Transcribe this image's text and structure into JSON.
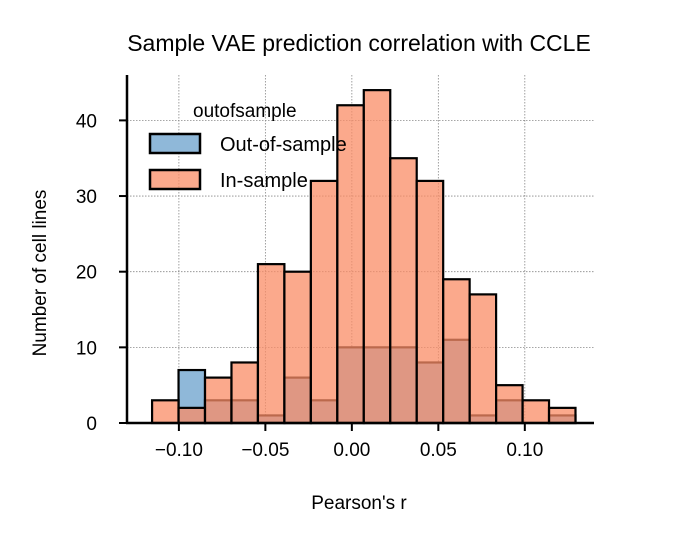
{
  "chart_data": {
    "type": "bar",
    "title": "Sample VAE prediction correlation with CCLE",
    "xlabel": "Pearson's r",
    "ylabel": "Number of cell lines",
    "xlim": [
      -0.13,
      0.14
    ],
    "ylim": [
      0,
      46
    ],
    "xticks": [
      -0.1,
      -0.05,
      0.0,
      0.05,
      0.1
    ],
    "xtick_labels": [
      "−0.10",
      "−0.05",
      "0.00",
      "0.05",
      "0.10"
    ],
    "yticks": [
      0,
      10,
      20,
      30,
      40
    ],
    "ytick_labels": [
      "0",
      "10",
      "20",
      "30",
      "40"
    ],
    "grid": true,
    "legend": {
      "title": "outofsample",
      "placement": "upper-left",
      "entries": [
        "Out-of-sample",
        "In-sample"
      ]
    },
    "bin_edges": [
      -0.1155,
      -0.1002,
      -0.0849,
      -0.0696,
      -0.0543,
      -0.039,
      -0.0237,
      -0.0084,
      0.0069,
      0.0222,
      0.0375,
      0.0528,
      0.0681,
      0.0834,
      0.0987,
      0.114,
      0.1293
    ],
    "series": [
      {
        "name": "Out-of-sample",
        "color": "#8fb8d9",
        "values": [
          0,
          7,
          3,
          3,
          1,
          6,
          3,
          10,
          10,
          10,
          8,
          11,
          1,
          3,
          0,
          1
        ]
      },
      {
        "name": "In-sample",
        "color": "#fa8c66",
        "values": [
          3,
          2,
          6,
          8,
          21,
          20,
          32,
          42,
          44,
          35,
          32,
          19,
          17,
          5,
          3,
          2
        ]
      }
    ]
  }
}
